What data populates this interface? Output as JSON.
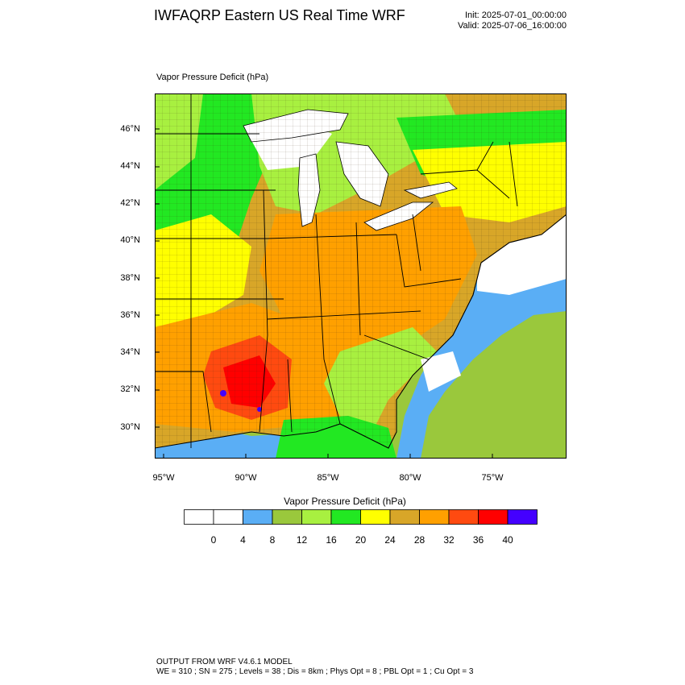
{
  "header": {
    "title": "IWFAQRP Eastern US Real Time WRF",
    "init": "Init: 2025-07-01_00:00:00",
    "valid": "Valid: 2025-07-06_16:00:00"
  },
  "map": {
    "field_label": "Vapor Pressure Deficit   (hPa)",
    "lat_labels": [
      "46°N",
      "44°N",
      "42°N",
      "40°N",
      "38°N",
      "36°N",
      "34°N",
      "32°N",
      "30°N"
    ],
    "lon_labels": [
      "95°W",
      "90°W",
      "85°W",
      "80°W",
      "75°W"
    ]
  },
  "colorbar": {
    "title": "Vapor Pressure Deficit  (hPa)",
    "labels": [
      "0",
      "4",
      "8",
      "12",
      "16",
      "20",
      "24",
      "28",
      "32",
      "36",
      "40"
    ],
    "colors": [
      "#ffffff",
      "#ffffff",
      "#5aaef5",
      "#9ac83c",
      "#a8f040",
      "#22e822",
      "#ffff00",
      "#d8a628",
      "#ffa000",
      "#ff4a10",
      "#ff0000",
      "#4400ff"
    ]
  },
  "footer": {
    "line1": "OUTPUT FROM WRF V4.6.1 MODEL",
    "line2": "WE = 310 ; SN = 275 ; Levels = 38 ; Dis = 8km ; Phys Opt = 8 ; PBL Opt = 1 ; Cu Opt = 3"
  }
}
